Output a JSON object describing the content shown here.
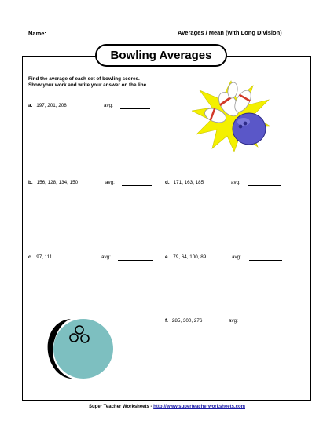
{
  "header": {
    "name_label": "Name:",
    "topic": "Averages / Mean (with Long Division)"
  },
  "title": "Bowling Averages",
  "instructions": {
    "line1": "Find the average of each set of bowling scores.",
    "line2": "Show your work and write your answer on the line."
  },
  "avg_label": "avg:",
  "problems": [
    {
      "letter": "a.",
      "numbers": "197, 201, 208"
    },
    {
      "letter": "b.",
      "numbers": "156, 128, 134, 150"
    },
    {
      "letter": "c.",
      "numbers": "97, 111"
    },
    {
      "letter": "d.",
      "numbers": "171, 163, 185"
    },
    {
      "letter": "e.",
      "numbers": "79, 64, 100, 89"
    },
    {
      "letter": "f.",
      "numbers": "285, 300, 276"
    }
  ],
  "footer": {
    "brand": "Super Teacher Worksheets",
    "separator": " - ",
    "url": "http://www.superteacherworksheets.com"
  },
  "colors": {
    "ball_purple": "#5a57c8",
    "star_yellow": "#f4f000",
    "ball_teal": "#7dbfc0",
    "link_blue": "#1a1aa6"
  },
  "icons": [
    "bowling-strike-icon",
    "bowling-ball-icon"
  ]
}
